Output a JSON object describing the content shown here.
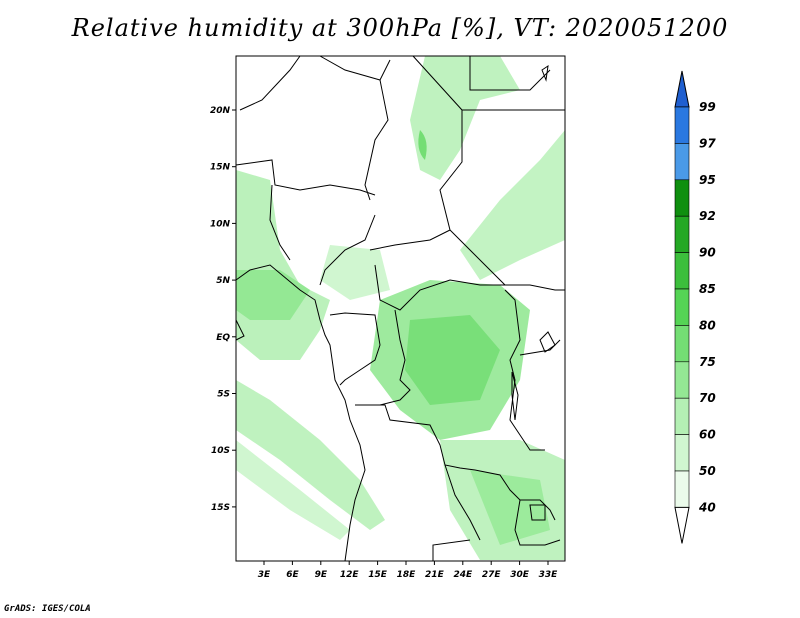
{
  "title": "Relative humidity at 300hPa [%], VT: 2020051200",
  "credit": "GrADS: IGES/COLA",
  "map": {
    "lat_labels": [
      "20N",
      "15N",
      "10N",
      "5N",
      "EQ",
      "5S",
      "10S",
      "15S"
    ],
    "lon_labels": [
      "3E",
      "6E",
      "9E",
      "12E",
      "15E",
      "18E",
      "21E",
      "24E",
      "27E",
      "30E",
      "33E"
    ]
  },
  "colorbar": {
    "labels": [
      "99",
      "97",
      "95",
      "92",
      "90",
      "85",
      "80",
      "75",
      "70",
      "60",
      "50",
      "40"
    ],
    "colors": [
      "#1f5fd0",
      "#2a78e0",
      "#4a9ae8",
      "#0f8f0f",
      "#24a824",
      "#3cbf3c",
      "#55d455",
      "#74de74",
      "#94e894",
      "#b4f0b4",
      "#d0f6d0",
      "#ebfbeb"
    ]
  }
}
